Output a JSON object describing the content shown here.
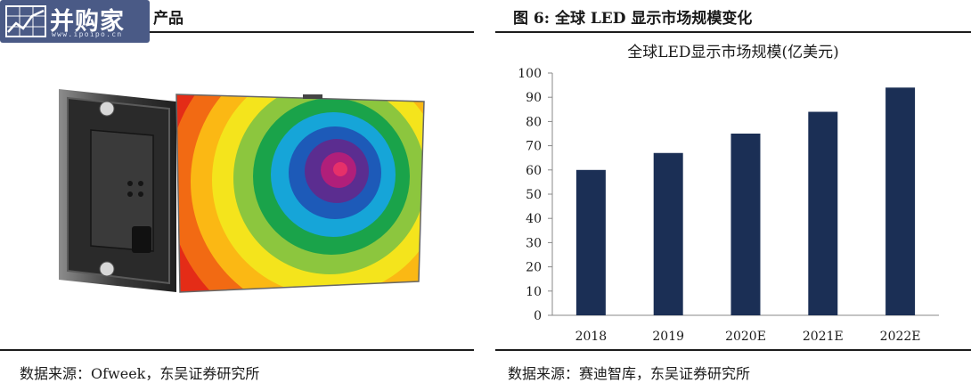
{
  "left": {
    "title": "产品",
    "watermark": {
      "brand": "并购家",
      "url": "www.ipoipo.cn"
    },
    "source": "数据来源：Ofweek，东吴证券研究所"
  },
  "right": {
    "figure_title": "图 6:  全球 LED 显示市场规模变化",
    "source": "数据来源：赛迪智库，东吴证券研究所"
  },
  "chart_data": {
    "type": "bar",
    "title": "全球LED显示市场规模(亿美元)",
    "categories": [
      "2018",
      "2019",
      "2020E",
      "2021E",
      "2022E"
    ],
    "values": [
      60,
      67,
      75,
      84,
      94
    ],
    "ylim": [
      0,
      100
    ],
    "ystep": 10,
    "bar_color": "#1b2f55",
    "grid": false,
    "legend": "none"
  }
}
